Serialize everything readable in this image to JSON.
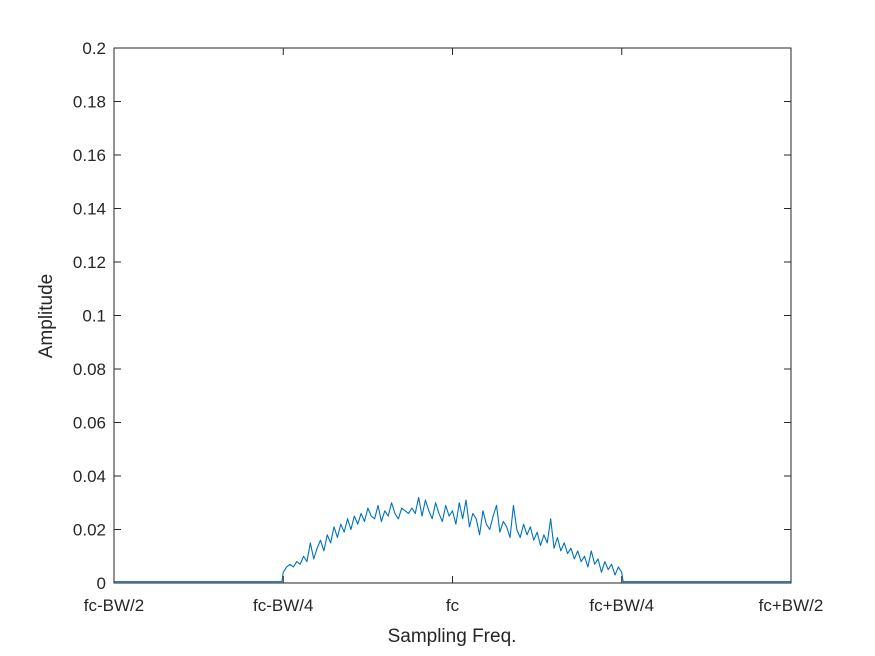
{
  "chart_data": {
    "type": "line",
    "xlabel": "Sampling Freq.",
    "ylabel": "Amplitude",
    "xlim": [
      -0.5,
      0.5
    ],
    "ylim": [
      0,
      0.2
    ],
    "x_ticks": [
      {
        "value": -0.5,
        "label": "fc-BW/2"
      },
      {
        "value": -0.25,
        "label": "fc-BW/4"
      },
      {
        "value": 0,
        "label": "fc"
      },
      {
        "value": 0.25,
        "label": "fc+BW/4"
      },
      {
        "value": 0.5,
        "label": "fc+BW/2"
      }
    ],
    "y_ticks": [
      {
        "value": 0,
        "label": "0"
      },
      {
        "value": 0.02,
        "label": "0.02"
      },
      {
        "value": 0.04,
        "label": "0.04"
      },
      {
        "value": 0.06,
        "label": "0.06"
      },
      {
        "value": 0.08,
        "label": "0.08"
      },
      {
        "value": 0.1,
        "label": "0.1"
      },
      {
        "value": 0.12,
        "label": "0.12"
      },
      {
        "value": 0.14,
        "label": "0.14"
      },
      {
        "value": 0.16,
        "label": "0.16"
      },
      {
        "value": 0.18,
        "label": "0.18"
      },
      {
        "value": 0.2,
        "label": "0.2"
      }
    ],
    "grid": false,
    "legend": "none",
    "series": [
      {
        "color": "#0072bd",
        "x": [
          -0.5,
          -0.252,
          -0.25,
          -0.245,
          -0.24,
          -0.235,
          -0.23,
          -0.225,
          -0.22,
          -0.215,
          -0.21,
          -0.205,
          -0.2,
          -0.195,
          -0.19,
          -0.185,
          -0.18,
          -0.175,
          -0.17,
          -0.165,
          -0.16,
          -0.155,
          -0.15,
          -0.145,
          -0.14,
          -0.135,
          -0.13,
          -0.125,
          -0.12,
          -0.115,
          -0.11,
          -0.105,
          -0.1,
          -0.095,
          -0.09,
          -0.085,
          -0.08,
          -0.075,
          -0.07,
          -0.065,
          -0.06,
          -0.055,
          -0.05,
          -0.045,
          -0.04,
          -0.035,
          -0.03,
          -0.025,
          -0.02,
          -0.015,
          -0.01,
          -0.005,
          0,
          0.005,
          0.01,
          0.015,
          0.02,
          0.025,
          0.03,
          0.035,
          0.04,
          0.045,
          0.05,
          0.055,
          0.06,
          0.065,
          0.07,
          0.075,
          0.08,
          0.085,
          0.09,
          0.095,
          0.1,
          0.105,
          0.11,
          0.115,
          0.12,
          0.125,
          0.13,
          0.135,
          0.14,
          0.145,
          0.15,
          0.155,
          0.16,
          0.165,
          0.17,
          0.175,
          0.18,
          0.185,
          0.19,
          0.195,
          0.2,
          0.205,
          0.21,
          0.215,
          0.22,
          0.225,
          0.23,
          0.235,
          0.24,
          0.245,
          0.25,
          0.252,
          0.5
        ],
        "y": [
          0.0005,
          0.0005,
          0.004,
          0.006,
          0.007,
          0.006,
          0.008,
          0.007,
          0.01,
          0.008,
          0.015,
          0.009,
          0.013,
          0.016,
          0.012,
          0.018,
          0.015,
          0.021,
          0.017,
          0.022,
          0.019,
          0.024,
          0.02,
          0.025,
          0.022,
          0.026,
          0.023,
          0.028,
          0.025,
          0.024,
          0.029,
          0.023,
          0.027,
          0.025,
          0.03,
          0.026,
          0.024,
          0.028,
          0.027,
          0.026,
          0.028,
          0.026,
          0.032,
          0.025,
          0.031,
          0.027,
          0.024,
          0.03,
          0.026,
          0.023,
          0.029,
          0.025,
          0.027,
          0.022,
          0.03,
          0.024,
          0.031,
          0.021,
          0.026,
          0.024,
          0.018,
          0.027,
          0.022,
          0.02,
          0.025,
          0.029,
          0.019,
          0.023,
          0.021,
          0.017,
          0.029,
          0.02,
          0.017,
          0.022,
          0.018,
          0.021,
          0.016,
          0.019,
          0.014,
          0.018,
          0.015,
          0.024,
          0.013,
          0.017,
          0.012,
          0.015,
          0.011,
          0.013,
          0.009,
          0.012,
          0.008,
          0.01,
          0.006,
          0.012,
          0.007,
          0.009,
          0.004,
          0.008,
          0.005,
          0.007,
          0.003,
          0.006,
          0.004,
          0.0005,
          0.0005
        ]
      }
    ]
  }
}
